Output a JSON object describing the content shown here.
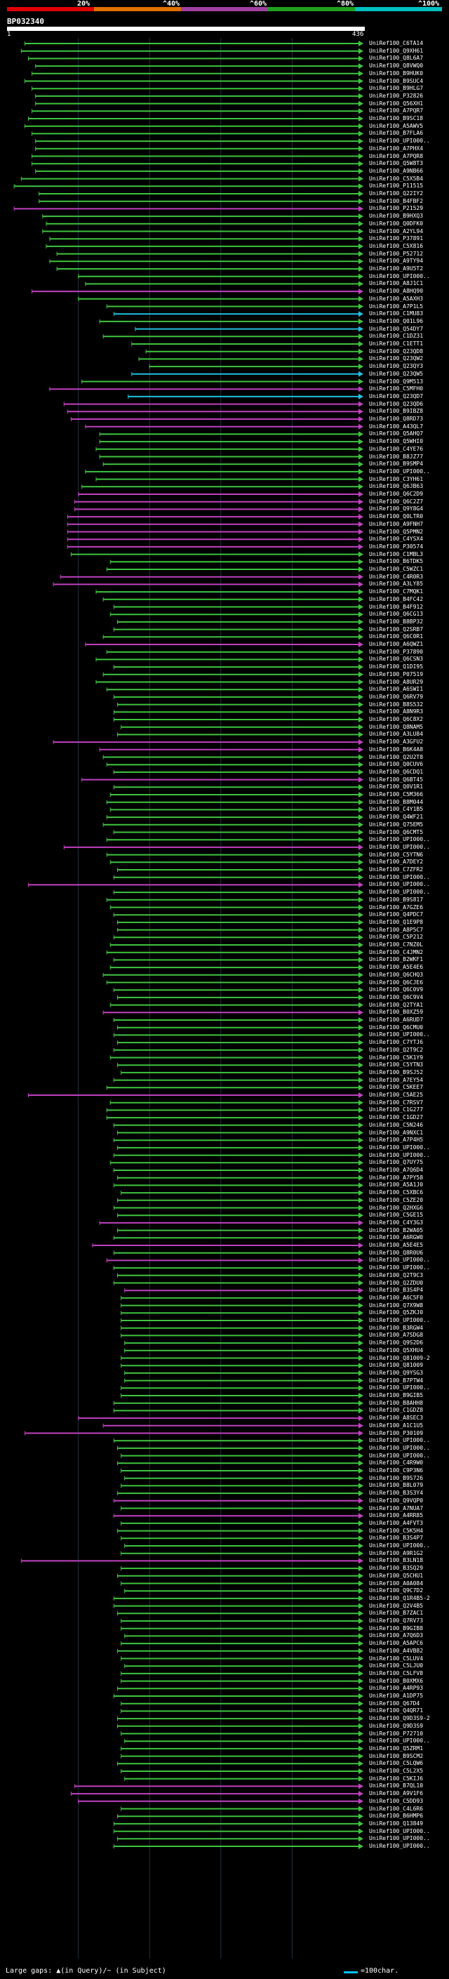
{
  "legend": {
    "scale_labels": [
      "20%",
      "^40%",
      "^60%",
      "^80%",
      "^100%"
    ],
    "colors": [
      "#e00000",
      "#e07000",
      "#a040a0",
      "#20a020",
      "#00c0c0"
    ]
  },
  "query": {
    "name": "BP032340",
    "start": "1",
    "end": "436"
  },
  "colors": {
    "green": "#3ec43e",
    "magenta": "#c040c0",
    "cyan": "#20c0e0",
    "grid": "#203040"
  },
  "hits": [
    {
      "label": "UniRef100_C6TA14",
      "s": 0.05,
      "c": "g"
    },
    {
      "label": "UniRef100_Q9XH61",
      "s": 0.04,
      "c": "g"
    },
    {
      "label": "UniRef100_Q8L6A7",
      "s": 0.06,
      "c": "g"
    },
    {
      "label": "UniRef100_Q8VWQ0",
      "s": 0.08,
      "c": "g"
    },
    {
      "label": "UniRef100_B9HUK0",
      "s": 0.07,
      "c": "g"
    },
    {
      "label": "UniRef100_B9SUC4",
      "s": 0.05,
      "c": "g"
    },
    {
      "label": "UniRef100_B9HLG7",
      "s": 0.07,
      "c": "g"
    },
    {
      "label": "UniRef100_P32826",
      "s": 0.08,
      "c": "g"
    },
    {
      "label": "UniRef100_Q56XH1",
      "s": 0.08,
      "c": "g"
    },
    {
      "label": "UniRef100_A7PQR7",
      "s": 0.07,
      "c": "g"
    },
    {
      "label": "UniRef100_B9SC18",
      "s": 0.06,
      "c": "g"
    },
    {
      "label": "UniRef100_A5AWV5",
      "s": 0.05,
      "c": "g"
    },
    {
      "label": "UniRef100_B7FLA6",
      "s": 0.07,
      "c": "g"
    },
    {
      "label": "UniRef100_UPI000..",
      "s": 0.08,
      "c": "g"
    },
    {
      "label": "UniRef100_A7PHX4",
      "s": 0.08,
      "c": "g"
    },
    {
      "label": "UniRef100_A7PQR8",
      "s": 0.07,
      "c": "g"
    },
    {
      "label": "UniRef100_Q5W8T3",
      "s": 0.07,
      "c": "g"
    },
    {
      "label": "UniRef100_A9NB66",
      "s": 0.08,
      "c": "g"
    },
    {
      "label": "UniRef100_C5X5B4",
      "s": 0.04,
      "c": "g"
    },
    {
      "label": "UniRef100_P11515",
      "s": 0.02,
      "c": "g"
    },
    {
      "label": "UniRef100_Q22IY2",
      "s": 0.09,
      "c": "g"
    },
    {
      "label": "UniRef100_B4FBF2",
      "s": 0.09,
      "c": "g"
    },
    {
      "label": "UniRef100_P21529",
      "s": 0.02,
      "c": "m"
    },
    {
      "label": "UniRef100_B9HXQ3",
      "s": 0.1,
      "c": "g"
    },
    {
      "label": "UniRef100_Q0DFK0",
      "s": 0.11,
      "c": "g"
    },
    {
      "label": "UniRef100_A2YL94",
      "s": 0.1,
      "c": "g"
    },
    {
      "label": "UniRef100_P37891",
      "s": 0.12,
      "c": "g"
    },
    {
      "label": "UniRef100_C5X816",
      "s": 0.11,
      "c": "g"
    },
    {
      "label": "UniRef100_P52712",
      "s": 0.14,
      "c": "g"
    },
    {
      "label": "UniRef100_A9TY94",
      "s": 0.12,
      "c": "g"
    },
    {
      "label": "UniRef100_A9U5T2",
      "s": 0.14,
      "c": "g"
    },
    {
      "label": "UniRef100_UPI000..",
      "s": 0.2,
      "c": "g"
    },
    {
      "label": "UniRef100_A8J1C1",
      "s": 0.22,
      "c": "g"
    },
    {
      "label": "UniRef100_A8HQ90",
      "s": 0.07,
      "c": "m"
    },
    {
      "label": "UniRef100_A5AXH3",
      "s": 0.2,
      "c": "g"
    },
    {
      "label": "UniRef100_A7P1L5",
      "s": 0.28,
      "c": "g"
    },
    {
      "label": "UniRef100_C1MU83",
      "s": 0.3,
      "c": "c"
    },
    {
      "label": "UniRef100_Q01L96",
      "s": 0.26,
      "c": "g"
    },
    {
      "label": "UniRef100_Q54DY7",
      "s": 0.36,
      "c": "c"
    },
    {
      "label": "UniRef100_C1DZ31",
      "s": 0.27,
      "c": "g"
    },
    {
      "label": "UniRef100_C1ETT1",
      "s": 0.35,
      "c": "g"
    },
    {
      "label": "UniRef100_Q23QD8",
      "s": 0.39,
      "c": "g"
    },
    {
      "label": "UniRef100_Q23QW2",
      "s": 0.37,
      "c": "g"
    },
    {
      "label": "UniRef100_Q23QY3",
      "s": 0.4,
      "c": "g"
    },
    {
      "label": "UniRef100_Q23QW5",
      "s": 0.35,
      "c": "c"
    },
    {
      "label": "UniRef100_Q9M513",
      "s": 0.21,
      "c": "g"
    },
    {
      "label": "UniRef100_C5MFH0",
      "s": 0.12,
      "c": "m"
    },
    {
      "label": "UniRef100_Q23QD7",
      "s": 0.34,
      "c": "c"
    },
    {
      "label": "UniRef100_Q23QD6",
      "s": 0.16,
      "c": "m"
    },
    {
      "label": "UniRef100_B9IBZ8",
      "s": 0.17,
      "c": "m"
    },
    {
      "label": "UniRef100_Q8RD73",
      "s": 0.18,
      "c": "m"
    },
    {
      "label": "UniRef100_A43QL7",
      "s": 0.22,
      "c": "m"
    },
    {
      "label": "UniRef100_Q5AHQ7",
      "s": 0.26,
      "c": "g"
    },
    {
      "label": "UniRef100_Q5WHI0",
      "s": 0.26,
      "c": "g"
    },
    {
      "label": "UniRef100_C4YE76",
      "s": 0.25,
      "c": "g"
    },
    {
      "label": "UniRef100_B8JZ77",
      "s": 0.26,
      "c": "g"
    },
    {
      "label": "UniRef100_B9SMP4",
      "s": 0.27,
      "c": "g"
    },
    {
      "label": "UniRef100_UPI000..",
      "s": 0.22,
      "c": "g"
    },
    {
      "label": "UniRef100_C3YH61",
      "s": 0.25,
      "c": "g"
    },
    {
      "label": "UniRef100_Q6JB63",
      "s": 0.21,
      "c": "g"
    },
    {
      "label": "UniRef100_Q6C2D9",
      "s": 0.2,
      "c": "m"
    },
    {
      "label": "UniRef100_Q6C2Z7",
      "s": 0.19,
      "c": "m"
    },
    {
      "label": "UniRef100_Q9Y8G4",
      "s": 0.19,
      "c": "m"
    },
    {
      "label": "UniRef100_Q0LTR0",
      "s": 0.17,
      "c": "m"
    },
    {
      "label": "UniRef100_A9FNH7",
      "s": 0.17,
      "c": "m"
    },
    {
      "label": "UniRef100_Q5PMN2",
      "s": 0.17,
      "c": "m"
    },
    {
      "label": "UniRef100_C4YSX4",
      "s": 0.17,
      "c": "m"
    },
    {
      "label": "UniRef100_P30574",
      "s": 0.17,
      "c": "m"
    },
    {
      "label": "UniRef100_C1MBL3",
      "s": 0.18,
      "c": "g"
    },
    {
      "label": "UniRef100_B6TDK5",
      "s": 0.29,
      "c": "g"
    },
    {
      "label": "UniRef100_C5WZC1",
      "s": 0.28,
      "c": "g"
    },
    {
      "label": "UniRef100_C4R0R3",
      "s": 0.15,
      "c": "m"
    },
    {
      "label": "UniRef100_A3LY85",
      "s": 0.13,
      "c": "m"
    },
    {
      "label": "UniRef100_C7MQK1",
      "s": 0.25,
      "c": "g"
    },
    {
      "label": "UniRef100_B4FC42",
      "s": 0.27,
      "c": "g"
    },
    {
      "label": "UniRef100_B4F912",
      "s": 0.3,
      "c": "g"
    },
    {
      "label": "UniRef100_Q6CG13",
      "s": 0.29,
      "c": "g"
    },
    {
      "label": "UniRef100_B8BP32",
      "s": 0.31,
      "c": "g"
    },
    {
      "label": "UniRef100_Q2SRB7",
      "s": 0.3,
      "c": "g"
    },
    {
      "label": "UniRef100_Q6C0R1",
      "s": 0.27,
      "c": "g"
    },
    {
      "label": "UniRef100_A6QWZ1",
      "s": 0.22,
      "c": "m"
    },
    {
      "label": "UniRef100_P37890",
      "s": 0.28,
      "c": "g"
    },
    {
      "label": "UniRef100_Q6CSN3",
      "s": 0.25,
      "c": "g"
    },
    {
      "label": "UniRef100_Q1DI95",
      "s": 0.3,
      "c": "g"
    },
    {
      "label": "UniRef100_P07519",
      "s": 0.27,
      "c": "g"
    },
    {
      "label": "UniRef100_A8UR29",
      "s": 0.25,
      "c": "g"
    },
    {
      "label": "UniRef100_A6SWI1",
      "s": 0.28,
      "c": "g"
    },
    {
      "label": "UniRef100_Q6RV79",
      "s": 0.3,
      "c": "g"
    },
    {
      "label": "UniRef100_B8S532",
      "s": 0.31,
      "c": "g"
    },
    {
      "label": "UniRef100_A8N9R3",
      "s": 0.3,
      "c": "g"
    },
    {
      "label": "UniRef100_Q6C8X2",
      "s": 0.3,
      "c": "g"
    },
    {
      "label": "UniRef100_Q8NAM5",
      "s": 0.32,
      "c": "g"
    },
    {
      "label": "UniRef100_A3LU84",
      "s": 0.31,
      "c": "g"
    },
    {
      "label": "UniRef100_A3GFU2",
      "s": 0.13,
      "c": "m"
    },
    {
      "label": "UniRef100_B6K4A8",
      "s": 0.26,
      "c": "m"
    },
    {
      "label": "UniRef100_Q2U2T8",
      "s": 0.27,
      "c": "g"
    },
    {
      "label": "UniRef100_Q0CUV6",
      "s": 0.28,
      "c": "g"
    },
    {
      "label": "UniRef100_Q6CDQ1",
      "s": 0.3,
      "c": "g"
    },
    {
      "label": "UniRef100_Q6BT45",
      "s": 0.21,
      "c": "m"
    },
    {
      "label": "UniRef100_Q0V1R1",
      "s": 0.3,
      "c": "g"
    },
    {
      "label": "UniRef100_C5M366",
      "s": 0.29,
      "c": "g"
    },
    {
      "label": "UniRef100_B8M044",
      "s": 0.28,
      "c": "g"
    },
    {
      "label": "UniRef100_C4Y1B5",
      "s": 0.29,
      "c": "g"
    },
    {
      "label": "UniRef100_Q4WF21",
      "s": 0.28,
      "c": "g"
    },
    {
      "label": "UniRef100_Q75EM5",
      "s": 0.27,
      "c": "g"
    },
    {
      "label": "UniRef100_Q6CMT5",
      "s": 0.3,
      "c": "g"
    },
    {
      "label": "UniRef100_UPI000..",
      "s": 0.28,
      "c": "g"
    },
    {
      "label": "UniRef100_UPI000..",
      "s": 0.16,
      "c": "m"
    },
    {
      "label": "UniRef100_C5YTN6",
      "s": 0.28,
      "c": "g"
    },
    {
      "label": "UniRef100_A7DEY2",
      "s": 0.29,
      "c": "g"
    },
    {
      "label": "UniRef100_C7ZFR2",
      "s": 0.31,
      "c": "g"
    },
    {
      "label": "UniRef100_UPI000..",
      "s": 0.3,
      "c": "g"
    },
    {
      "label": "UniRef100_UPI000..",
      "s": 0.06,
      "c": "m"
    },
    {
      "label": "UniRef100_UPI000..",
      "s": 0.3,
      "c": "g"
    },
    {
      "label": "UniRef100_B9S817",
      "s": 0.28,
      "c": "g"
    },
    {
      "label": "UniRef100_A7GZE6",
      "s": 0.29,
      "c": "g"
    },
    {
      "label": "UniRef100_Q4PDC7",
      "s": 0.3,
      "c": "g"
    },
    {
      "label": "UniRef100_Q1E9P8",
      "s": 0.31,
      "c": "g"
    },
    {
      "label": "UniRef100_A8P5C7",
      "s": 0.31,
      "c": "g"
    },
    {
      "label": "UniRef100_C5P212",
      "s": 0.3,
      "c": "g"
    },
    {
      "label": "UniRef100_C7NZ0L",
      "s": 0.29,
      "c": "g"
    },
    {
      "label": "UniRef100_C4JMN2",
      "s": 0.28,
      "c": "g"
    },
    {
      "label": "UniRef100_B2WKF1",
      "s": 0.3,
      "c": "g"
    },
    {
      "label": "UniRef100_A5E4E6",
      "s": 0.29,
      "c": "g"
    },
    {
      "label": "UniRef100_Q6CHQ3",
      "s": 0.27,
      "c": "g"
    },
    {
      "label": "UniRef100_Q6CJE6",
      "s": 0.28,
      "c": "g"
    },
    {
      "label": "UniRef100_Q6C0V9",
      "s": 0.3,
      "c": "g"
    },
    {
      "label": "UniRef100_Q6C9V4",
      "s": 0.31,
      "c": "g"
    },
    {
      "label": "UniRef100_Q2TYA1",
      "s": 0.29,
      "c": "g"
    },
    {
      "label": "UniRef100_B0XZ59",
      "s": 0.27,
      "c": "m"
    },
    {
      "label": "UniRef100_A6RUD7",
      "s": 0.3,
      "c": "g"
    },
    {
      "label": "UniRef100_Q6CMU0",
      "s": 0.31,
      "c": "g"
    },
    {
      "label": "UniRef100_UPI000..",
      "s": 0.3,
      "c": "g"
    },
    {
      "label": "UniRef100_C7YTJ6",
      "s": 0.31,
      "c": "g"
    },
    {
      "label": "UniRef100_Q2T9C2",
      "s": 0.3,
      "c": "g"
    },
    {
      "label": "UniRef100_C5K1Y9",
      "s": 0.29,
      "c": "g"
    },
    {
      "label": "UniRef100_C5YTN3",
      "s": 0.31,
      "c": "g"
    },
    {
      "label": "UniRef100_B9SJ52",
      "s": 0.32,
      "c": "g"
    },
    {
      "label": "UniRef100_A7EY54",
      "s": 0.3,
      "c": "g"
    },
    {
      "label": "UniRef100_C5KEE7",
      "s": 0.28,
      "c": "g"
    },
    {
      "label": "UniRef100_C5AE25",
      "s": 0.06,
      "c": "m"
    },
    {
      "label": "UniRef100_C7RSV7",
      "s": 0.29,
      "c": "g"
    },
    {
      "label": "UniRef100_C1G277",
      "s": 0.28,
      "c": "g"
    },
    {
      "label": "UniRef100_C1GD27",
      "s": 0.28,
      "c": "g"
    },
    {
      "label": "UniRef100_C5N246",
      "s": 0.3,
      "c": "g"
    },
    {
      "label": "UniRef100_A9NXC1",
      "s": 0.31,
      "c": "g"
    },
    {
      "label": "UniRef100_A7P4H5",
      "s": 0.3,
      "c": "g"
    },
    {
      "label": "UniRef100_UPI000..",
      "s": 0.31,
      "c": "g"
    },
    {
      "label": "UniRef100_UPI000..",
      "s": 0.3,
      "c": "g"
    },
    {
      "label": "UniRef100_Q7UY75",
      "s": 0.29,
      "c": "g"
    },
    {
      "label": "UniRef100_A7Q6D4",
      "s": 0.3,
      "c": "g"
    },
    {
      "label": "UniRef100_A7PY58",
      "s": 0.31,
      "c": "g"
    },
    {
      "label": "UniRef100_A5A1J0",
      "s": 0.3,
      "c": "g"
    },
    {
      "label": "UniRef100_C5XBC6",
      "s": 0.32,
      "c": "g"
    },
    {
      "label": "UniRef100_C5ZE20",
      "s": 0.31,
      "c": "g"
    },
    {
      "label": "UniRef100_Q2HXG6",
      "s": 0.3,
      "c": "g"
    },
    {
      "label": "UniRef100_C5GE15",
      "s": 0.31,
      "c": "g"
    },
    {
      "label": "UniRef100_C4Y3G3",
      "s": 0.26,
      "c": "m"
    },
    {
      "label": "UniRef100_B2WA05",
      "s": 0.31,
      "c": "g"
    },
    {
      "label": "UniRef100_A6RGW0",
      "s": 0.3,
      "c": "g"
    },
    {
      "label": "UniRef100_A5E4E5",
      "s": 0.24,
      "c": "m"
    },
    {
      "label": "UniRef100_Q8R0U6",
      "s": 0.3,
      "c": "g"
    },
    {
      "label": "UniRef100_UPI000..",
      "s": 0.28,
      "c": "m"
    },
    {
      "label": "UniRef100_UPI000..",
      "s": 0.3,
      "c": "g"
    },
    {
      "label": "UniRef100_Q2T9C3",
      "s": 0.31,
      "c": "g"
    },
    {
      "label": "UniRef100_Q2ZDU0",
      "s": 0.3,
      "c": "g"
    },
    {
      "label": "UniRef100_B3S4P4",
      "s": 0.33,
      "c": "m"
    },
    {
      "label": "UniRef100_A6C5F0",
      "s": 0.32,
      "c": "g"
    },
    {
      "label": "UniRef100_Q7X9W8",
      "s": 0.32,
      "c": "g"
    },
    {
      "label": "UniRef100_Q5ZKJ0",
      "s": 0.32,
      "c": "g"
    },
    {
      "label": "UniRef100_UPI000..",
      "s": 0.32,
      "c": "g"
    },
    {
      "label": "UniRef100_B3RGW4",
      "s": 0.32,
      "c": "g"
    },
    {
      "label": "UniRef100_A7SDG8",
      "s": 0.32,
      "c": "g"
    },
    {
      "label": "UniRef100_Q9S2D6",
      "s": 0.33,
      "c": "g"
    },
    {
      "label": "UniRef100_Q5XHU4",
      "s": 0.33,
      "c": "g"
    },
    {
      "label": "UniRef100_Q81009-2",
      "s": 0.32,
      "c": "g"
    },
    {
      "label": "UniRef100_Q81009",
      "s": 0.32,
      "c": "g"
    },
    {
      "label": "UniRef100_Q9YSG3",
      "s": 0.33,
      "c": "g"
    },
    {
      "label": "UniRef100_B7PTW4",
      "s": 0.33,
      "c": "g"
    },
    {
      "label": "UniRef100_UPI000..",
      "s": 0.32,
      "c": "g"
    },
    {
      "label": "UniRef100_B9GIB5",
      "s": 0.32,
      "c": "g"
    },
    {
      "label": "UniRef100_B8AHH8",
      "s": 0.3,
      "c": "g"
    },
    {
      "label": "UniRef100_C1GDZ8",
      "s": 0.3,
      "c": "g"
    },
    {
      "label": "UniRef100_A8SEC3",
      "s": 0.2,
      "c": "m"
    },
    {
      "label": "UniRef100_A1C1U5",
      "s": 0.27,
      "c": "m"
    },
    {
      "label": "UniRef100_P30109",
      "s": 0.05,
      "c": "m"
    },
    {
      "label": "UniRef100_UPI000..",
      "s": 0.3,
      "c": "g"
    },
    {
      "label": "UniRef100_UPI000..",
      "s": 0.31,
      "c": "g"
    },
    {
      "label": "UniRef100_UPI000..",
      "s": 0.32,
      "c": "g"
    },
    {
      "label": "UniRef100_C4R9W0",
      "s": 0.31,
      "c": "g"
    },
    {
      "label": "UniRef100_C9P3N6",
      "s": 0.32,
      "c": "g"
    },
    {
      "label": "UniRef100_B9S726",
      "s": 0.33,
      "c": "g"
    },
    {
      "label": "UniRef100_B8L079",
      "s": 0.32,
      "c": "g"
    },
    {
      "label": "UniRef100_B3S3Y4",
      "s": 0.31,
      "c": "g"
    },
    {
      "label": "UniRef100_Q9VQP0",
      "s": 0.3,
      "c": "m"
    },
    {
      "label": "UniRef100_A7NUA7",
      "s": 0.32,
      "c": "g"
    },
    {
      "label": "UniRef100_A4RR85",
      "s": 0.3,
      "c": "m"
    },
    {
      "label": "UniRef100_A4FVT3",
      "s": 0.32,
      "c": "g"
    },
    {
      "label": "UniRef100_C5K5H4",
      "s": 0.31,
      "c": "g"
    },
    {
      "label": "UniRef100_B3S4P7",
      "s": 0.32,
      "c": "g"
    },
    {
      "label": "UniRef100_UPI000..",
      "s": 0.33,
      "c": "g"
    },
    {
      "label": "UniRef100_A9R1G2",
      "s": 0.32,
      "c": "g"
    },
    {
      "label": "UniRef100_B3LN18",
      "s": 0.04,
      "c": "m"
    },
    {
      "label": "UniRef100_B3SQ29",
      "s": 0.32,
      "c": "g"
    },
    {
      "label": "UniRef100_Q5CHU1",
      "s": 0.31,
      "c": "g"
    },
    {
      "label": "UniRef100_A0A084",
      "s": 0.32,
      "c": "g"
    },
    {
      "label": "UniRef100_Q9C7D2",
      "s": 0.33,
      "c": "g"
    },
    {
      "label": "UniRef100_Q1R4B5-2",
      "s": 0.3,
      "c": "g"
    },
    {
      "label": "UniRef100_Q2V4B5",
      "s": 0.3,
      "c": "g"
    },
    {
      "label": "UniRef100_B7ZAC1",
      "s": 0.31,
      "c": "g"
    },
    {
      "label": "UniRef100_Q7RV73",
      "s": 0.32,
      "c": "g"
    },
    {
      "label": "UniRef100_B9GIB8",
      "s": 0.32,
      "c": "g"
    },
    {
      "label": "UniRef100_A7Q6D3",
      "s": 0.33,
      "c": "g"
    },
    {
      "label": "UniRef100_A5APC6",
      "s": 0.32,
      "c": "g"
    },
    {
      "label": "UniRef100_A4VB82",
      "s": 0.31,
      "c": "g"
    },
    {
      "label": "UniRef100_C5LUV4",
      "s": 0.32,
      "c": "g"
    },
    {
      "label": "UniRef100_C5LJU0",
      "s": 0.33,
      "c": "g"
    },
    {
      "label": "UniRef100_C5LFV8",
      "s": 0.32,
      "c": "g"
    },
    {
      "label": "UniRef100_B0XMX6",
      "s": 0.32,
      "c": "g"
    },
    {
      "label": "UniRef100_A4RP93",
      "s": 0.31,
      "c": "g"
    },
    {
      "label": "UniRef100_A1DP75",
      "s": 0.3,
      "c": "g"
    },
    {
      "label": "UniRef100_Q67D4",
      "s": 0.32,
      "c": "g"
    },
    {
      "label": "UniRef100_Q4QR71",
      "s": 0.32,
      "c": "g"
    },
    {
      "label": "UniRef100_Q9D3S9-2",
      "s": 0.31,
      "c": "g"
    },
    {
      "label": "UniRef100_Q9D3S9",
      "s": 0.31,
      "c": "g"
    },
    {
      "label": "UniRef100_P72710",
      "s": 0.32,
      "c": "g"
    },
    {
      "label": "UniRef100_UPI000..",
      "s": 0.33,
      "c": "g"
    },
    {
      "label": "UniRef100_Q5ZRM1",
      "s": 0.32,
      "c": "g"
    },
    {
      "label": "UniRef100_B9SCM2",
      "s": 0.32,
      "c": "g"
    },
    {
      "label": "UniRef100_C5LQW6",
      "s": 0.31,
      "c": "g"
    },
    {
      "label": "UniRef100_C5L2X5",
      "s": 0.32,
      "c": "g"
    },
    {
      "label": "UniRef100_C5KIJ6",
      "s": 0.33,
      "c": "g"
    },
    {
      "label": "UniRef100_B7QL10",
      "s": 0.19,
      "c": "m"
    },
    {
      "label": "UniRef100_A9V1F6",
      "s": 0.18,
      "c": "m"
    },
    {
      "label": "UniRef100_C5DD93",
      "s": 0.2,
      "c": "m"
    },
    {
      "label": "UniRef100_C4L6R6",
      "s": 0.32,
      "c": "g"
    },
    {
      "label": "UniRef100_B6HMP6",
      "s": 0.31,
      "c": "g"
    },
    {
      "label": "UniRef100_Q13849",
      "s": 0.3,
      "c": "g"
    },
    {
      "label": "UniRef100_UPI000..",
      "s": 0.3,
      "c": "g"
    },
    {
      "label": "UniRef100_UPI000..",
      "s": 0.31,
      "c": "g"
    },
    {
      "label": "UniRef100_UPI000..",
      "s": 0.3,
      "c": "g"
    }
  ],
  "footer": {
    "large_gaps": "Large gaps: ▲(in Query)/~ (in Subject)",
    "scale_note": "=100char."
  }
}
